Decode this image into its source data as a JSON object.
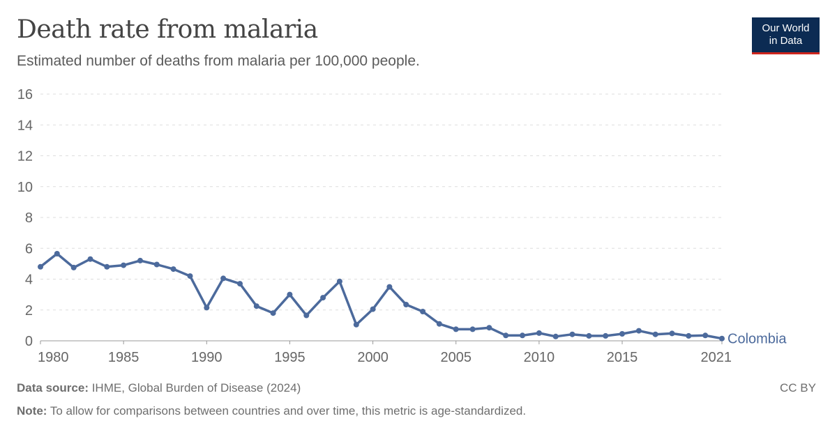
{
  "header": {
    "title": "Death rate from malaria",
    "subtitle": "Estimated number of deaths from malaria per 100,000 people."
  },
  "logo": {
    "line1": "Our World",
    "line2": "in Data",
    "bg_color": "#0c2b53",
    "accent_color": "#ce261e"
  },
  "footer": {
    "source_label": "Data source:",
    "source_text": " IHME, Global Burden of Disease (2024)",
    "note_label": "Note:",
    "note_text": " To allow for comparisons between countries and over time, this metric is age-standardized.",
    "license": "CC BY"
  },
  "chart_data": {
    "type": "line",
    "title": "Death rate from malaria",
    "subtitle": "Estimated number of deaths from malaria per 100,000 people.",
    "xlabel": "",
    "ylabel": "",
    "xlim": [
      1980,
      2021
    ],
    "ylim": [
      0,
      16
    ],
    "grid": true,
    "x_ticks": [
      1980,
      1985,
      1990,
      1995,
      2000,
      2005,
      2010,
      2015,
      2021
    ],
    "y_ticks": [
      0,
      2,
      4,
      6,
      8,
      10,
      12,
      14,
      16
    ],
    "legend": "inline-end-label",
    "series": [
      {
        "name": "Colombia",
        "color": "#4c6a9c",
        "x": [
          1980,
          1981,
          1982,
          1983,
          1984,
          1985,
          1986,
          1987,
          1988,
          1989,
          1990,
          1991,
          1992,
          1993,
          1994,
          1995,
          1996,
          1997,
          1998,
          1999,
          2000,
          2001,
          2002,
          2003,
          2004,
          2005,
          2006,
          2007,
          2008,
          2009,
          2010,
          2011,
          2012,
          2013,
          2014,
          2015,
          2016,
          2017,
          2018,
          2019,
          2020,
          2021
        ],
        "values": [
          4.8,
          5.65,
          4.75,
          5.3,
          4.8,
          4.9,
          5.2,
          4.95,
          4.65,
          4.2,
          2.15,
          4.05,
          3.7,
          2.25,
          1.8,
          3.0,
          1.65,
          2.8,
          3.85,
          1.05,
          2.05,
          3.5,
          2.35,
          1.9,
          1.1,
          0.75,
          0.75,
          0.85,
          0.35,
          0.35,
          0.5,
          0.28,
          0.42,
          0.32,
          0.32,
          0.45,
          0.65,
          0.42,
          0.48,
          0.32,
          0.35,
          0.15
        ]
      }
    ]
  }
}
